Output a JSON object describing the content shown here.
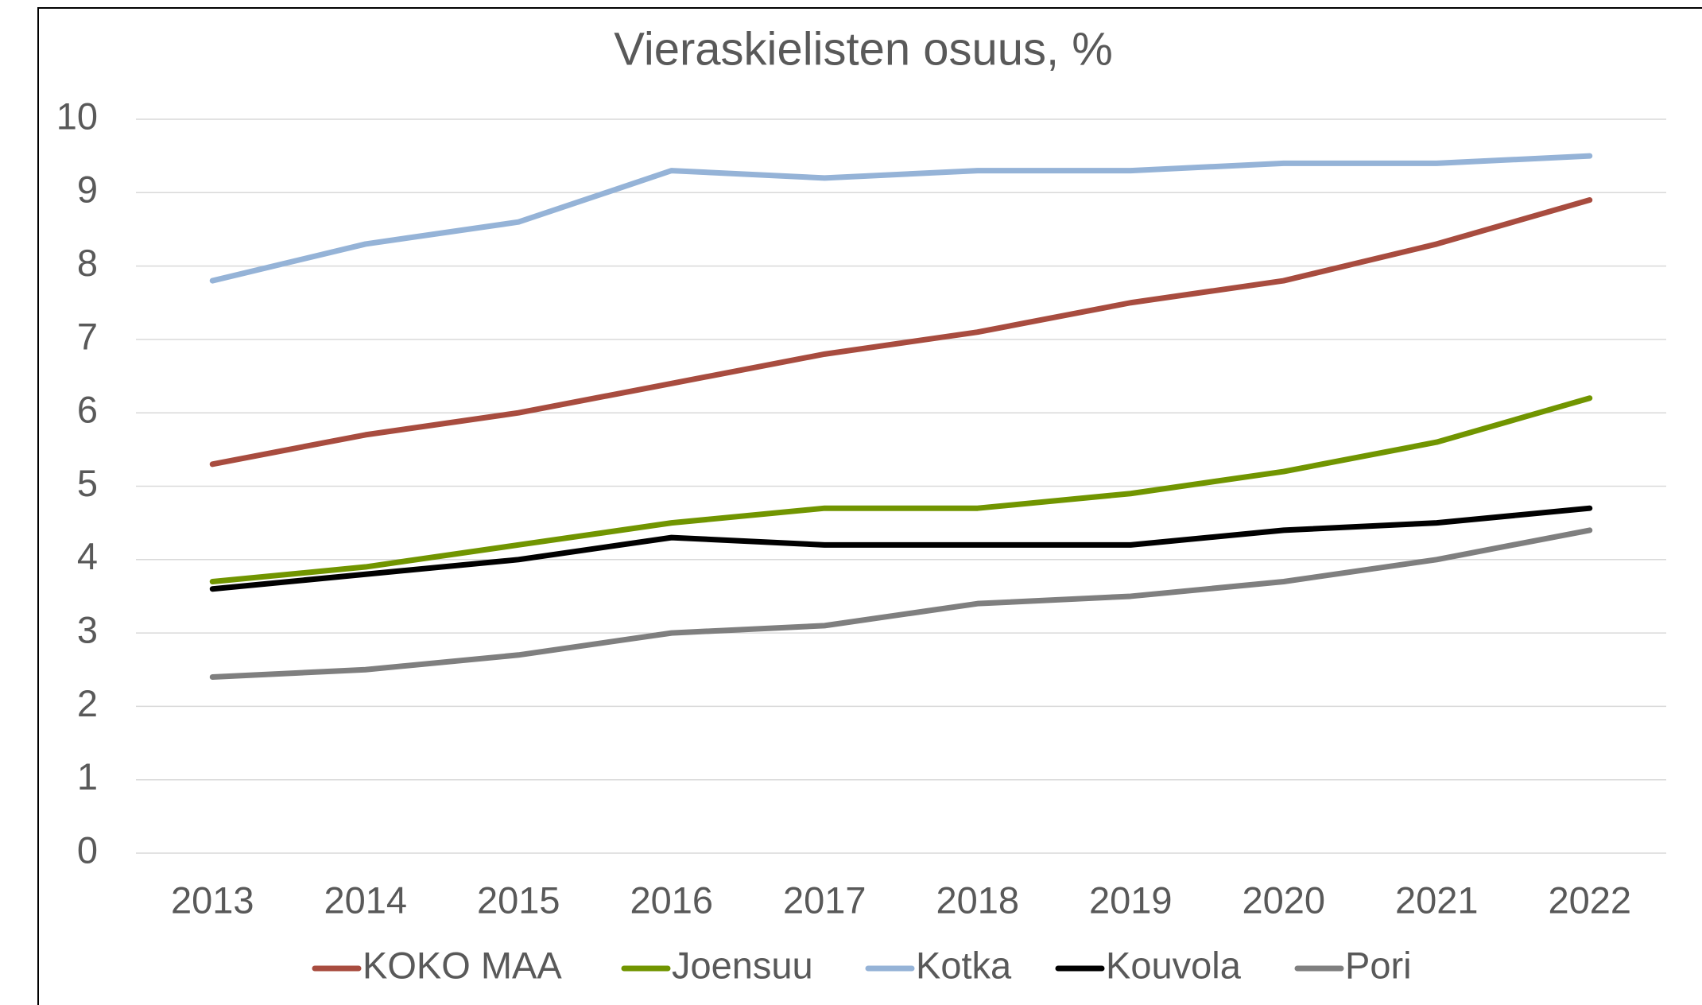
{
  "chart_data": {
    "type": "line",
    "title": "Vieraskielisten osuus, %",
    "categories": [
      "2013",
      "2014",
      "2015",
      "2016",
      "2017",
      "2018",
      "2019",
      "2020",
      "2021",
      "2022"
    ],
    "series": [
      {
        "name": "KOKO MAA",
        "color": "#a84c3f",
        "values": [
          5.3,
          5.7,
          6.0,
          6.4,
          6.8,
          7.1,
          7.5,
          7.8,
          8.3,
          8.9
        ]
      },
      {
        "name": "Joensuu",
        "color": "#719500",
        "values": [
          3.7,
          3.9,
          4.2,
          4.5,
          4.7,
          4.7,
          4.9,
          5.2,
          5.6,
          6.2
        ]
      },
      {
        "name": "Kotka",
        "color": "#95b3d7",
        "values": [
          7.8,
          8.3,
          8.6,
          9.3,
          9.2,
          9.3,
          9.3,
          9.4,
          9.4,
          9.5
        ]
      },
      {
        "name": "Kouvola",
        "color": "#000000",
        "values": [
          3.6,
          3.8,
          4.0,
          4.3,
          4.2,
          4.2,
          4.2,
          4.4,
          4.5,
          4.7
        ]
      },
      {
        "name": "Pori",
        "color": "#7f7f7f",
        "values": [
          2.4,
          2.5,
          2.7,
          3.0,
          3.1,
          3.4,
          3.5,
          3.7,
          4.0,
          4.4
        ]
      }
    ],
    "ylim": [
      0,
      10
    ],
    "yticks": [
      0,
      1,
      2,
      3,
      4,
      5,
      6,
      7,
      8,
      9,
      10
    ],
    "grid": true,
    "legend": "bottom"
  }
}
